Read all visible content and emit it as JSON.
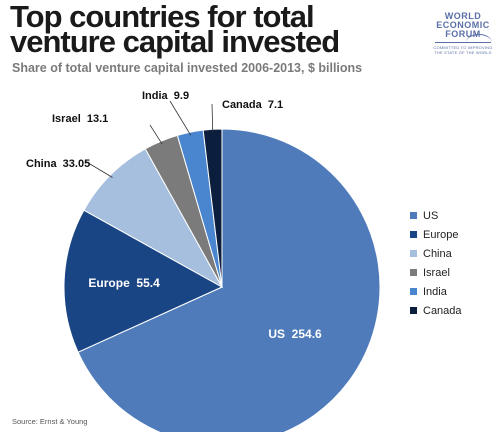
{
  "header": {
    "title": "Top countries for total venture capital invested",
    "subtitle": "Share of total venture capital invested 2006-2013, $ billions"
  },
  "logo": {
    "name_lines": [
      "WORLD",
      "ECONOMIC",
      "FORUM"
    ],
    "tagline": "COMMITTED TO IMPROVING THE STATE OF THE WORLD"
  },
  "source": "Source: Ernst & Young",
  "colors": {
    "US": "#4f7bba",
    "Europe": "#1a4585",
    "China": "#a7bfdf",
    "Israel": "#7b7b7b",
    "India": "#4a86cf",
    "Canada": "#0c1e3d"
  },
  "chart_data": {
    "type": "pie",
    "title": "Top countries for total venture capital invested",
    "subtitle": "Share of total venture capital invested 2006-2013, $ billions",
    "unit": "$ billions",
    "legend_position": "right",
    "slices": [
      {
        "label": "US",
        "value": 254.6,
        "display": "US  254.6"
      },
      {
        "label": "Europe",
        "value": 55.4,
        "display": "Europe  55.4"
      },
      {
        "label": "China",
        "value": 33.05,
        "display": "China  33.05"
      },
      {
        "label": "Israel",
        "value": 13.1,
        "display": "Israel  13.1"
      },
      {
        "label": "India",
        "value": 9.9,
        "display": "India  9.9"
      },
      {
        "label": "Canada",
        "value": 7.1,
        "display": "Canada  7.1"
      }
    ]
  }
}
